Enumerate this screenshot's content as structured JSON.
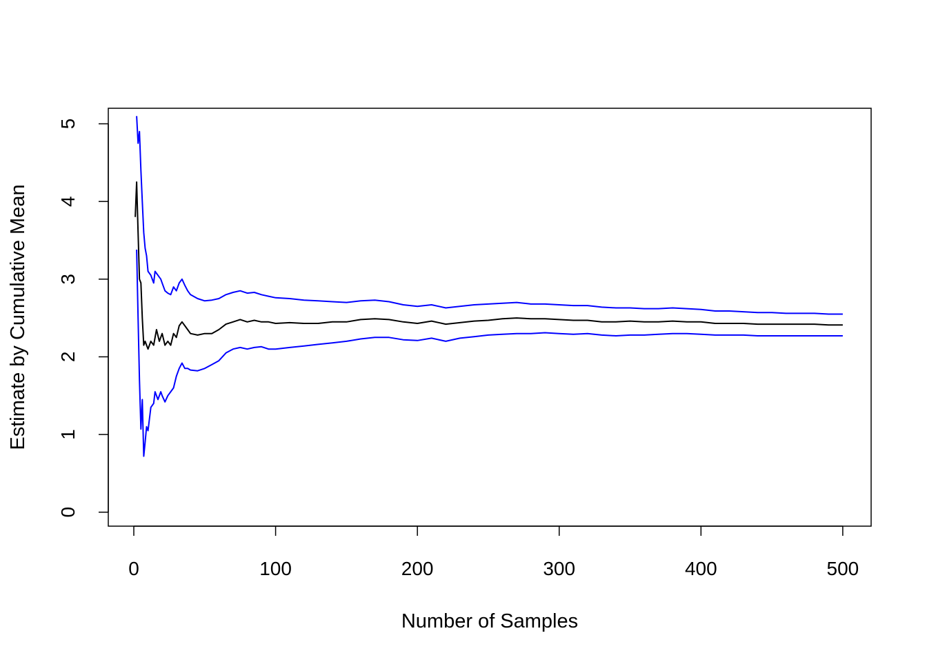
{
  "chart_data": {
    "type": "line",
    "title": "",
    "xlabel": "Number of Samples",
    "ylabel": "Estimate by Cumulative Mean",
    "xlim": [
      -18,
      520
    ],
    "ylim": [
      -0.18,
      5.2
    ],
    "xticks": [
      0,
      100,
      200,
      300,
      400,
      500
    ],
    "yticks": [
      0,
      1,
      2,
      3,
      4,
      5
    ],
    "grid": false,
    "legend": "none",
    "series": [
      {
        "color": "#000000",
        "points": [
          [
            1,
            3.8
          ],
          [
            2,
            4.25
          ],
          [
            3,
            3.6
          ],
          [
            4,
            3.0
          ],
          [
            5,
            2.95
          ],
          [
            6,
            2.5
          ],
          [
            7,
            2.15
          ],
          [
            8,
            2.2
          ],
          [
            9,
            2.15
          ],
          [
            10,
            2.1
          ],
          [
            12,
            2.2
          ],
          [
            14,
            2.15
          ],
          [
            16,
            2.35
          ],
          [
            18,
            2.2
          ],
          [
            20,
            2.3
          ],
          [
            22,
            2.15
          ],
          [
            24,
            2.2
          ],
          [
            26,
            2.15
          ],
          [
            28,
            2.3
          ],
          [
            30,
            2.25
          ],
          [
            32,
            2.4
          ],
          [
            34,
            2.45
          ],
          [
            36,
            2.4
          ],
          [
            38,
            2.35
          ],
          [
            40,
            2.3
          ],
          [
            45,
            2.28
          ],
          [
            50,
            2.3
          ],
          [
            55,
            2.3
          ],
          [
            60,
            2.35
          ],
          [
            65,
            2.42
          ],
          [
            70,
            2.45
          ],
          [
            75,
            2.48
          ],
          [
            80,
            2.45
          ],
          [
            85,
            2.47
          ],
          [
            90,
            2.45
          ],
          [
            95,
            2.45
          ],
          [
            100,
            2.43
          ],
          [
            110,
            2.44
          ],
          [
            120,
            2.43
          ],
          [
            130,
            2.43
          ],
          [
            140,
            2.45
          ],
          [
            150,
            2.45
          ],
          [
            160,
            2.48
          ],
          [
            170,
            2.49
          ],
          [
            180,
            2.48
          ],
          [
            190,
            2.45
          ],
          [
            200,
            2.43
          ],
          [
            210,
            2.46
          ],
          [
            220,
            2.42
          ],
          [
            230,
            2.44
          ],
          [
            240,
            2.46
          ],
          [
            250,
            2.47
          ],
          [
            260,
            2.49
          ],
          [
            270,
            2.5
          ],
          [
            280,
            2.49
          ],
          [
            290,
            2.49
          ],
          [
            300,
            2.48
          ],
          [
            310,
            2.47
          ],
          [
            320,
            2.47
          ],
          [
            330,
            2.45
          ],
          [
            340,
            2.45
          ],
          [
            350,
            2.46
          ],
          [
            360,
            2.45
          ],
          [
            370,
            2.45
          ],
          [
            380,
            2.46
          ],
          [
            390,
            2.45
          ],
          [
            400,
            2.45
          ],
          [
            410,
            2.43
          ],
          [
            420,
            2.43
          ],
          [
            430,
            2.43
          ],
          [
            440,
            2.42
          ],
          [
            450,
            2.42
          ],
          [
            460,
            2.42
          ],
          [
            470,
            2.42
          ],
          [
            480,
            2.42
          ],
          [
            490,
            2.41
          ],
          [
            500,
            2.41
          ]
        ]
      },
      {
        "color": "#0000ff",
        "points": [
          [
            2,
            5.1
          ],
          [
            3,
            4.75
          ],
          [
            4,
            4.9
          ],
          [
            5,
            4.4
          ],
          [
            6,
            4.0
          ],
          [
            7,
            3.6
          ],
          [
            8,
            3.4
          ],
          [
            9,
            3.3
          ],
          [
            10,
            3.1
          ],
          [
            12,
            3.05
          ],
          [
            14,
            2.95
          ],
          [
            15,
            3.1
          ],
          [
            17,
            3.05
          ],
          [
            19,
            3.0
          ],
          [
            20,
            2.95
          ],
          [
            22,
            2.85
          ],
          [
            24,
            2.82
          ],
          [
            26,
            2.8
          ],
          [
            28,
            2.9
          ],
          [
            30,
            2.85
          ],
          [
            32,
            2.95
          ],
          [
            34,
            3.0
          ],
          [
            36,
            2.92
          ],
          [
            38,
            2.85
          ],
          [
            40,
            2.8
          ],
          [
            45,
            2.75
          ],
          [
            50,
            2.72
          ],
          [
            55,
            2.73
          ],
          [
            60,
            2.75
          ],
          [
            65,
            2.8
          ],
          [
            70,
            2.83
          ],
          [
            75,
            2.85
          ],
          [
            80,
            2.82
          ],
          [
            85,
            2.83
          ],
          [
            90,
            2.8
          ],
          [
            95,
            2.78
          ],
          [
            100,
            2.76
          ],
          [
            110,
            2.75
          ],
          [
            120,
            2.73
          ],
          [
            130,
            2.72
          ],
          [
            140,
            2.71
          ],
          [
            150,
            2.7
          ],
          [
            160,
            2.72
          ],
          [
            170,
            2.73
          ],
          [
            180,
            2.71
          ],
          [
            190,
            2.67
          ],
          [
            200,
            2.65
          ],
          [
            210,
            2.67
          ],
          [
            220,
            2.63
          ],
          [
            230,
            2.65
          ],
          [
            240,
            2.67
          ],
          [
            250,
            2.68
          ],
          [
            260,
            2.69
          ],
          [
            270,
            2.7
          ],
          [
            280,
            2.68
          ],
          [
            290,
            2.68
          ],
          [
            300,
            2.67
          ],
          [
            310,
            2.66
          ],
          [
            320,
            2.66
          ],
          [
            330,
            2.64
          ],
          [
            340,
            2.63
          ],
          [
            350,
            2.63
          ],
          [
            360,
            2.62
          ],
          [
            370,
            2.62
          ],
          [
            380,
            2.63
          ],
          [
            390,
            2.62
          ],
          [
            400,
            2.61
          ],
          [
            410,
            2.59
          ],
          [
            420,
            2.59
          ],
          [
            430,
            2.58
          ],
          [
            440,
            2.57
          ],
          [
            450,
            2.57
          ],
          [
            460,
            2.56
          ],
          [
            470,
            2.56
          ],
          [
            480,
            2.56
          ],
          [
            490,
            2.55
          ],
          [
            500,
            2.55
          ]
        ]
      },
      {
        "color": "#0000ff",
        "points": [
          [
            2,
            3.38
          ],
          [
            3,
            2.5
          ],
          [
            4,
            1.7
          ],
          [
            5,
            1.07
          ],
          [
            6,
            1.45
          ],
          [
            7,
            0.72
          ],
          [
            8,
            0.9
          ],
          [
            9,
            1.1
          ],
          [
            10,
            1.05
          ],
          [
            12,
            1.35
          ],
          [
            14,
            1.4
          ],
          [
            15,
            1.55
          ],
          [
            17,
            1.45
          ],
          [
            19,
            1.55
          ],
          [
            20,
            1.5
          ],
          [
            22,
            1.42
          ],
          [
            24,
            1.5
          ],
          [
            26,
            1.55
          ],
          [
            28,
            1.6
          ],
          [
            30,
            1.75
          ],
          [
            32,
            1.85
          ],
          [
            34,
            1.92
          ],
          [
            36,
            1.85
          ],
          [
            38,
            1.85
          ],
          [
            40,
            1.83
          ],
          [
            45,
            1.82
          ],
          [
            50,
            1.85
          ],
          [
            55,
            1.9
          ],
          [
            60,
            1.95
          ],
          [
            65,
            2.05
          ],
          [
            70,
            2.1
          ],
          [
            75,
            2.12
          ],
          [
            80,
            2.1
          ],
          [
            85,
            2.12
          ],
          [
            90,
            2.13
          ],
          [
            95,
            2.1
          ],
          [
            100,
            2.1
          ],
          [
            110,
            2.12
          ],
          [
            120,
            2.14
          ],
          [
            130,
            2.16
          ],
          [
            140,
            2.18
          ],
          [
            150,
            2.2
          ],
          [
            160,
            2.23
          ],
          [
            170,
            2.25
          ],
          [
            180,
            2.25
          ],
          [
            190,
            2.22
          ],
          [
            200,
            2.21
          ],
          [
            210,
            2.24
          ],
          [
            220,
            2.2
          ],
          [
            230,
            2.24
          ],
          [
            240,
            2.26
          ],
          [
            250,
            2.28
          ],
          [
            260,
            2.29
          ],
          [
            270,
            2.3
          ],
          [
            280,
            2.3
          ],
          [
            290,
            2.31
          ],
          [
            300,
            2.3
          ],
          [
            310,
            2.29
          ],
          [
            320,
            2.3
          ],
          [
            330,
            2.28
          ],
          [
            340,
            2.27
          ],
          [
            350,
            2.28
          ],
          [
            360,
            2.28
          ],
          [
            370,
            2.29
          ],
          [
            380,
            2.3
          ],
          [
            390,
            2.3
          ],
          [
            400,
            2.29
          ],
          [
            410,
            2.28
          ],
          [
            420,
            2.28
          ],
          [
            430,
            2.28
          ],
          [
            440,
            2.27
          ],
          [
            450,
            2.27
          ],
          [
            460,
            2.27
          ],
          [
            470,
            2.27
          ],
          [
            480,
            2.27
          ],
          [
            490,
            2.27
          ],
          [
            500,
            2.27
          ]
        ]
      }
    ]
  }
}
